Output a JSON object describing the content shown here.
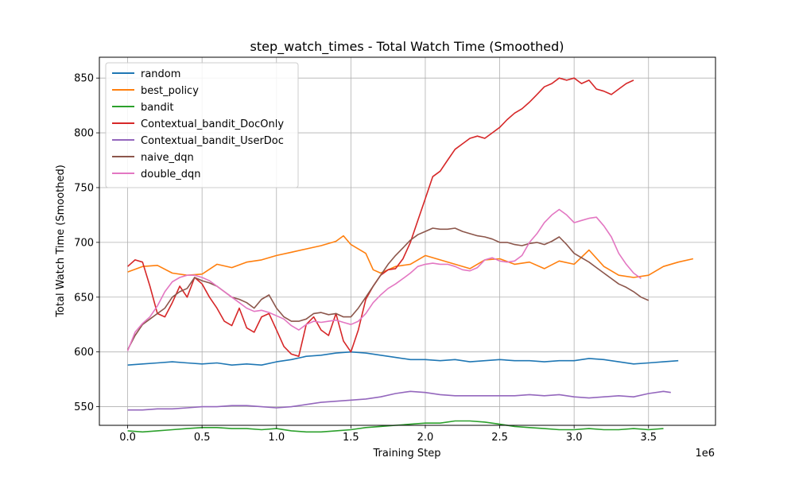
{
  "chart_data": {
    "type": "line",
    "title": "step_watch_times - Total Watch Time (Smoothed)",
    "xlabel": "Training Step",
    "ylabel": "Total Watch Time (Smoothed)",
    "x_offset_label": "1e6",
    "xlim": [
      -0.19,
      3.95
    ],
    "ylim": [
      533,
      869
    ],
    "xticks": [
      0.0,
      0.5,
      1.0,
      1.5,
      2.0,
      2.5,
      3.0,
      3.5
    ],
    "xtick_labels": [
      "0.0",
      "0.5",
      "1.0",
      "1.5",
      "2.0",
      "2.5",
      "3.0",
      "3.5"
    ],
    "yticks": [
      550,
      600,
      650,
      700,
      750,
      800,
      850
    ],
    "ytick_labels": [
      "550",
      "600",
      "650",
      "700",
      "750",
      "800",
      "850"
    ],
    "grid": true,
    "legend_position": "upper-left",
    "series": [
      {
        "name": "random",
        "color": "#1f77b4",
        "x": [
          0.0,
          0.1,
          0.2,
          0.3,
          0.4,
          0.5,
          0.6,
          0.7,
          0.8,
          0.9,
          1.0,
          1.1,
          1.2,
          1.3,
          1.4,
          1.5,
          1.6,
          1.7,
          1.8,
          1.9,
          2.0,
          2.1,
          2.2,
          2.3,
          2.4,
          2.5,
          2.6,
          2.7,
          2.8,
          2.9,
          3.0,
          3.1,
          3.2,
          3.3,
          3.4,
          3.5,
          3.6,
          3.7
        ],
        "y": [
          588,
          589,
          590,
          591,
          590,
          589,
          590,
          588,
          589,
          588,
          591,
          593,
          596,
          597,
          599,
          600,
          599,
          597,
          595,
          593,
          593,
          592,
          593,
          591,
          592,
          593,
          592,
          592,
          591,
          592,
          592,
          594,
          593,
          591,
          589,
          590,
          591,
          592
        ]
      },
      {
        "name": "best_policy",
        "color": "#ff7f0e",
        "x": [
          0.0,
          0.1,
          0.2,
          0.3,
          0.4,
          0.5,
          0.6,
          0.7,
          0.8,
          0.9,
          1.0,
          1.1,
          1.2,
          1.3,
          1.4,
          1.45,
          1.5,
          1.6,
          1.65,
          1.7,
          1.8,
          1.9,
          2.0,
          2.1,
          2.2,
          2.3,
          2.4,
          2.5,
          2.6,
          2.7,
          2.8,
          2.9,
          3.0,
          3.1,
          3.2,
          3.3,
          3.4,
          3.5,
          3.6,
          3.7,
          3.8
        ],
        "y": [
          673,
          678,
          679,
          672,
          670,
          671,
          680,
          677,
          682,
          684,
          688,
          691,
          694,
          697,
          701,
          706,
          698,
          690,
          675,
          672,
          678,
          680,
          688,
          684,
          680,
          676,
          684,
          685,
          680,
          682,
          676,
          683,
          680,
          693,
          678,
          670,
          668,
          670,
          678,
          682,
          685
        ]
      },
      {
        "name": "bandit",
        "color": "#2ca02c",
        "x": [
          0.0,
          0.1,
          0.2,
          0.3,
          0.4,
          0.5,
          0.6,
          0.7,
          0.8,
          0.9,
          1.0,
          1.1,
          1.2,
          1.3,
          1.4,
          1.5,
          1.6,
          1.7,
          1.8,
          1.9,
          2.0,
          2.1,
          2.2,
          2.3,
          2.4,
          2.5,
          2.6,
          2.7,
          2.8,
          2.9,
          3.0,
          3.1,
          3.2,
          3.3,
          3.4,
          3.5,
          3.6
        ],
        "y": [
          528,
          527,
          528,
          529,
          530,
          531,
          531,
          530,
          530,
          529,
          530,
          528,
          527,
          527,
          528,
          529,
          531,
          532,
          533,
          534,
          535,
          535,
          537,
          537,
          536,
          534,
          532,
          531,
          530,
          529,
          529,
          530,
          529,
          529,
          530,
          529,
          530
        ]
      },
      {
        "name": "Contextual_bandit_DocOnly",
        "color": "#d62728",
        "x": [
          0.0,
          0.05,
          0.1,
          0.15,
          0.2,
          0.25,
          0.3,
          0.35,
          0.4,
          0.45,
          0.5,
          0.55,
          0.6,
          0.65,
          0.7,
          0.75,
          0.8,
          0.85,
          0.9,
          0.95,
          1.0,
          1.05,
          1.1,
          1.15,
          1.2,
          1.25,
          1.3,
          1.35,
          1.4,
          1.45,
          1.5,
          1.55,
          1.6,
          1.65,
          1.7,
          1.75,
          1.8,
          1.85,
          1.9,
          1.95,
          2.0,
          2.05,
          2.1,
          2.15,
          2.2,
          2.25,
          2.3,
          2.35,
          2.4,
          2.45,
          2.5,
          2.55,
          2.6,
          2.65,
          2.7,
          2.75,
          2.8,
          2.85,
          2.9,
          2.95,
          3.0,
          3.05,
          3.1,
          3.15,
          3.2,
          3.25,
          3.3,
          3.35,
          3.4
        ],
        "y": [
          678,
          684,
          682,
          660,
          635,
          632,
          645,
          660,
          650,
          668,
          662,
          650,
          640,
          628,
          624,
          640,
          622,
          618,
          632,
          635,
          620,
          605,
          598,
          596,
          625,
          632,
          620,
          615,
          635,
          610,
          600,
          620,
          648,
          660,
          670,
          675,
          676,
          685,
          700,
          720,
          740,
          760,
          765,
          775,
          785,
          790,
          795,
          797,
          795,
          800,
          805,
          812,
          818,
          822,
          828,
          835,
          842,
          845,
          850,
          848,
          850,
          845,
          848,
          840,
          838,
          835,
          840,
          845,
          848
        ]
      },
      {
        "name": "Contextual_bandit_UserDoc",
        "color": "#9467bd",
        "x": [
          0.0,
          0.1,
          0.2,
          0.3,
          0.4,
          0.5,
          0.6,
          0.7,
          0.8,
          0.9,
          1.0,
          1.1,
          1.2,
          1.3,
          1.4,
          1.5,
          1.6,
          1.7,
          1.8,
          1.9,
          2.0,
          2.1,
          2.2,
          2.3,
          2.4,
          2.5,
          2.6,
          2.7,
          2.8,
          2.9,
          3.0,
          3.1,
          3.2,
          3.3,
          3.4,
          3.5,
          3.6,
          3.65
        ],
        "y": [
          547,
          547,
          548,
          548,
          549,
          550,
          550,
          551,
          551,
          550,
          549,
          550,
          552,
          554,
          555,
          556,
          557,
          559,
          562,
          564,
          563,
          561,
          560,
          560,
          560,
          560,
          560,
          561,
          560,
          561,
          559,
          558,
          559,
          560,
          559,
          562,
          564,
          563
        ]
      },
      {
        "name": "naive_dqn",
        "color": "#8c564b",
        "x": [
          0.0,
          0.05,
          0.1,
          0.15,
          0.2,
          0.25,
          0.3,
          0.35,
          0.4,
          0.45,
          0.5,
          0.55,
          0.6,
          0.65,
          0.7,
          0.75,
          0.8,
          0.85,
          0.9,
          0.95,
          1.0,
          1.05,
          1.1,
          1.15,
          1.2,
          1.25,
          1.3,
          1.35,
          1.4,
          1.45,
          1.5,
          1.55,
          1.6,
          1.65,
          1.7,
          1.75,
          1.8,
          1.85,
          1.9,
          1.95,
          2.0,
          2.05,
          2.1,
          2.15,
          2.2,
          2.25,
          2.3,
          2.35,
          2.4,
          2.45,
          2.5,
          2.55,
          2.6,
          2.65,
          2.7,
          2.75,
          2.8,
          2.85,
          2.9,
          2.95,
          3.0,
          3.05,
          3.1,
          3.15,
          3.2,
          3.25,
          3.3,
          3.35,
          3.4,
          3.45,
          3.5
        ],
        "y": [
          602,
          615,
          625,
          630,
          635,
          640,
          650,
          655,
          658,
          668,
          665,
          663,
          660,
          655,
          650,
          648,
          645,
          640,
          648,
          652,
          640,
          632,
          628,
          628,
          630,
          635,
          636,
          634,
          635,
          632,
          632,
          640,
          650,
          660,
          670,
          680,
          688,
          695,
          702,
          707,
          710,
          713,
          712,
          712,
          713,
          710,
          708,
          706,
          705,
          703,
          700,
          700,
          698,
          697,
          699,
          700,
          698,
          701,
          705,
          698,
          690,
          686,
          682,
          677,
          672,
          667,
          662,
          659,
          655,
          650,
          647
        ]
      },
      {
        "name": "double_dqn",
        "color": "#e377c2",
        "x": [
          0.0,
          0.05,
          0.1,
          0.15,
          0.2,
          0.25,
          0.3,
          0.35,
          0.4,
          0.45,
          0.5,
          0.55,
          0.6,
          0.65,
          0.7,
          0.75,
          0.8,
          0.85,
          0.9,
          0.95,
          1.0,
          1.05,
          1.1,
          1.15,
          1.2,
          1.25,
          1.3,
          1.35,
          1.4,
          1.45,
          1.5,
          1.55,
          1.6,
          1.65,
          1.7,
          1.75,
          1.8,
          1.85,
          1.9,
          1.95,
          2.0,
          2.05,
          2.1,
          2.15,
          2.2,
          2.25,
          2.3,
          2.35,
          2.4,
          2.45,
          2.5,
          2.55,
          2.6,
          2.65,
          2.7,
          2.75,
          2.8,
          2.85,
          2.9,
          2.95,
          3.0,
          3.05,
          3.1,
          3.15,
          3.2,
          3.25,
          3.3,
          3.35,
          3.4,
          3.45
        ],
        "y": [
          601,
          618,
          626,
          632,
          642,
          655,
          664,
          668,
          670,
          670,
          668,
          665,
          660,
          655,
          650,
          645,
          640,
          637,
          638,
          636,
          633,
          630,
          624,
          620,
          625,
          628,
          627,
          628,
          629,
          627,
          625,
          628,
          635,
          645,
          652,
          658,
          662,
          667,
          672,
          678,
          680,
          681,
          680,
          680,
          678,
          675,
          674,
          677,
          684,
          686,
          683,
          682,
          683,
          688,
          700,
          708,
          718,
          725,
          730,
          725,
          718,
          720,
          722,
          723,
          715,
          705,
          690,
          680,
          672,
          667
        ]
      }
    ]
  }
}
